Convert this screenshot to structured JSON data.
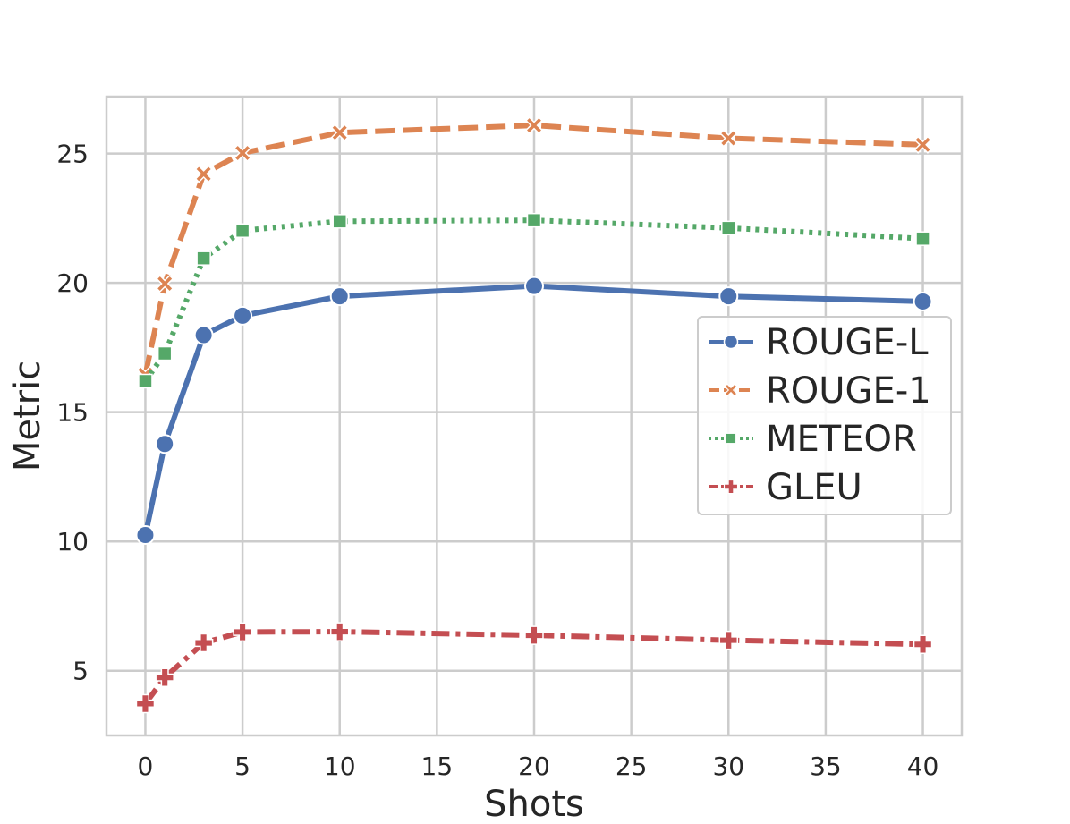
{
  "chart_data": {
    "type": "line",
    "title": "",
    "xlabel": "Shots",
    "ylabel": "Metric",
    "x": [
      0,
      1,
      3,
      5,
      10,
      20,
      30,
      40
    ],
    "xlim": [
      -2,
      42
    ],
    "ylim": [
      2.5,
      27.2
    ],
    "xticks": [
      "0",
      "5",
      "10",
      "15",
      "20",
      "25",
      "30",
      "35",
      "40"
    ],
    "yticks": [
      "5",
      "10",
      "15",
      "20",
      "25"
    ],
    "grid": true,
    "legend_position": "center-right",
    "series": [
      {
        "name": "ROUGE-L",
        "color": "#4c72b0",
        "dash": "solid",
        "marker": "circle",
        "values": [
          10.25,
          13.77,
          17.98,
          18.73,
          19.48,
          19.88,
          19.48,
          19.28
        ]
      },
      {
        "name": "ROUGE-1",
        "color": "#dd8452",
        "dash": "dashed",
        "marker": "x",
        "values": [
          16.45,
          19.97,
          24.21,
          25.02,
          25.81,
          26.09,
          25.59,
          25.34
        ]
      },
      {
        "name": "METEOR",
        "color": "#55a868",
        "dash": "dotted",
        "marker": "square",
        "values": [
          16.2,
          17.27,
          20.95,
          22.02,
          22.38,
          22.42,
          22.12,
          21.71
        ]
      },
      {
        "name": "GLEU",
        "color": "#c44e52",
        "dash": "dashdot",
        "marker": "plus",
        "values": [
          3.73,
          4.74,
          6.08,
          6.5,
          6.51,
          6.37,
          6.18,
          6.02
        ]
      }
    ]
  }
}
